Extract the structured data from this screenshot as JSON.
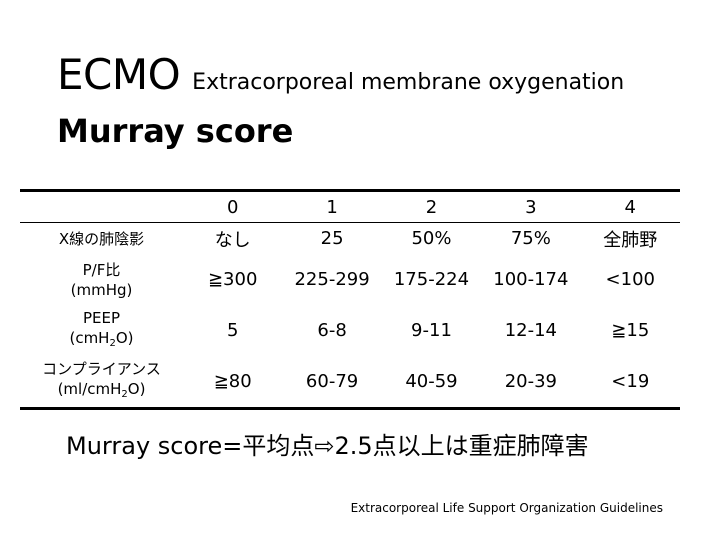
{
  "title": {
    "main": "ECMO",
    "sub": "Extracorporeal membrane oxygenation"
  },
  "subtitle": "Murray score",
  "table": {
    "headers": [
      "",
      "0",
      "1",
      "2",
      "3",
      "4"
    ],
    "rows": [
      {
        "label_line1": "X線の肺陰影",
        "values": [
          "なし",
          "25",
          "50%",
          "75%",
          "全肺野"
        ]
      },
      {
        "label_line1": "P/F比",
        "label_line2": "(mmHg)",
        "values": [
          "≧300",
          "225-299",
          "175-224",
          "100-174",
          "<100"
        ]
      },
      {
        "label_line1": "PEEP",
        "label_line2_pre": "(cmH",
        "label_line2_sub": "2",
        "label_line2_post": "O)",
        "values": [
          "5",
          "6-8",
          "9-11",
          "12-14",
          "≧15"
        ]
      },
      {
        "label_line1": "コンプライアンス",
        "label_line2_pre": "(ml/cmH",
        "label_line2_sub": "2",
        "label_line2_post": "O)",
        "values": [
          "≧80",
          "60-79",
          "40-59",
          "20-39",
          "<19"
        ]
      }
    ]
  },
  "note": "Murray score=平均点⇨2.5点以上は重症肺障害",
  "source": "Extracorporeal Life Support Organization Guidelines"
}
